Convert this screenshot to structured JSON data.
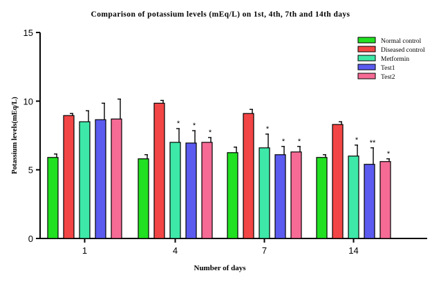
{
  "chart_data": {
    "type": "bar",
    "title": "Comparison of potassium levels (mEq/L) on 1st, 4th, 7th and 14th days",
    "xlabel": "Number of days",
    "ylabel": "Potassium levels(mEq/L)",
    "categories": [
      "1",
      "4",
      "7",
      "14"
    ],
    "ylim": [
      0,
      15
    ],
    "yticks": [
      "0",
      "5",
      "10",
      "15"
    ],
    "legend_position": "top-right",
    "series": [
      {
        "name": "Normal control",
        "color": "#22e022",
        "values": [
          5.9,
          5.8,
          6.25,
          5.9
        ],
        "errors": [
          0.25,
          0.3,
          0.4,
          0.2
        ],
        "significance": [
          "",
          "",
          "",
          ""
        ]
      },
      {
        "name": "Diseased control",
        "color": "#f24545",
        "values": [
          8.95,
          9.85,
          9.1,
          8.3
        ],
        "errors": [
          0.15,
          0.2,
          0.3,
          0.2
        ],
        "significance": [
          "",
          "",
          "",
          ""
        ]
      },
      {
        "name": "Metformin",
        "color": "#3ee8a8",
        "values": [
          8.5,
          7.0,
          6.6,
          6.0
        ],
        "errors": [
          0.8,
          1.0,
          1.0,
          0.8
        ],
        "significance": [
          "",
          "*",
          "*",
          "*"
        ]
      },
      {
        "name": "Test1",
        "color": "#5b5bf0",
        "values": [
          8.65,
          6.95,
          6.1,
          5.4
        ],
        "errors": [
          1.2,
          0.9,
          0.6,
          1.2
        ],
        "significance": [
          "",
          "*",
          "*",
          "**"
        ]
      },
      {
        "name": "Test2",
        "color": "#f56b95",
        "values": [
          8.7,
          7.0,
          6.3,
          5.6
        ],
        "errors": [
          1.45,
          0.35,
          0.4,
          0.2
        ],
        "significance": [
          "",
          "*",
          "*",
          "*"
        ]
      }
    ]
  }
}
